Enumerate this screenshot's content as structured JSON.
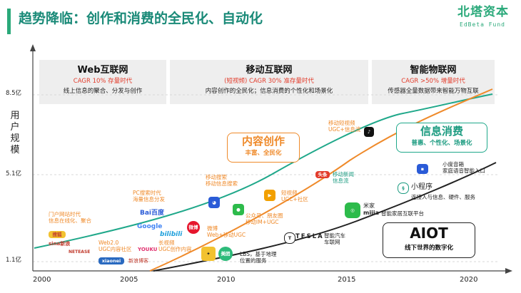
{
  "slide": {
    "title": "趋势降临：创作和消费的全民化、自动化",
    "logo_text": "北塔资本",
    "logo_subtext": "EdBeta Fund",
    "accent_color": "#2aa97a",
    "orange_color": "#ef8a2a"
  },
  "eras": [
    {
      "title": "Web互联网",
      "cagr": "CAGR 10% 存量时代",
      "desc": "线上信息的聚合、分发与创作"
    },
    {
      "title": "移动互联网",
      "cagr": "(短视频)  CAGR 30% 准存量时代",
      "desc": "内容创作的全民化；信息消费的个性化和场景化"
    },
    {
      "title": "智能物联网",
      "cagr": "CAGR >50% 增量时代",
      "desc": "传感器全量数据带来智能万物互联"
    }
  ],
  "axes": {
    "y_title": "用户规模",
    "y_ticks": [
      "8.5亿",
      "5.1亿",
      "1.1亿"
    ],
    "x_ticks": [
      "2000",
      "2005",
      "2010",
      "2015",
      "2020"
    ]
  },
  "callouts": {
    "creation": {
      "title": "内容创作",
      "subtitle": "丰富、全民化"
    },
    "consumption": {
      "title": "信息消费",
      "subtitle": "普惠、个性化、场景化"
    },
    "aiot": {
      "title": "AIOT",
      "subtitle": "线下世界的数字化"
    }
  },
  "annotations": {
    "portal": "门户网站时代\n信息在线化、聚合",
    "pc_search": "PC搜索时代\n海量信息分发",
    "web2": "Web2.0\nUGC内容社区",
    "long_video": "长视频\nUGC创作内容",
    "weibo": "微博\nWeb+移动UGC",
    "mobile_search": "移动搜索\n移动信息搜索",
    "short_video": "短视频\nUGC+社区",
    "public_account": "公众号、朋友圈\n移动IM+UGC",
    "lbs": "LBS，基于地理\n位置的服务",
    "mobile_short_video": "移动短视频\nUGC+信息流",
    "mobile_news": "移动新闻\n信息流",
    "smart_car": "智能汽车\n车联网",
    "smart_home": "智能家居互联平台",
    "xiaodu": "小度音箱\n家庭语音智能入口",
    "mini_program": "小程序",
    "mini_program_desc": "连接人与信息、硬件、服务"
  },
  "logos": {
    "sohu": "搜狐",
    "sina": "sina新浪",
    "netease": "NETEASE",
    "baidu": "Bai百度",
    "google": "Google",
    "bilibili": "bilibili",
    "youku": "YOUKU",
    "xiaonei": "xiaonei",
    "sina_blog": "新浪博客",
    "weibo": "微博",
    "meituan": "美团",
    "toutiao": "头条",
    "tesla": "TESLA",
    "mijia_cn": "米家",
    "mijia_en": "mijia"
  }
}
